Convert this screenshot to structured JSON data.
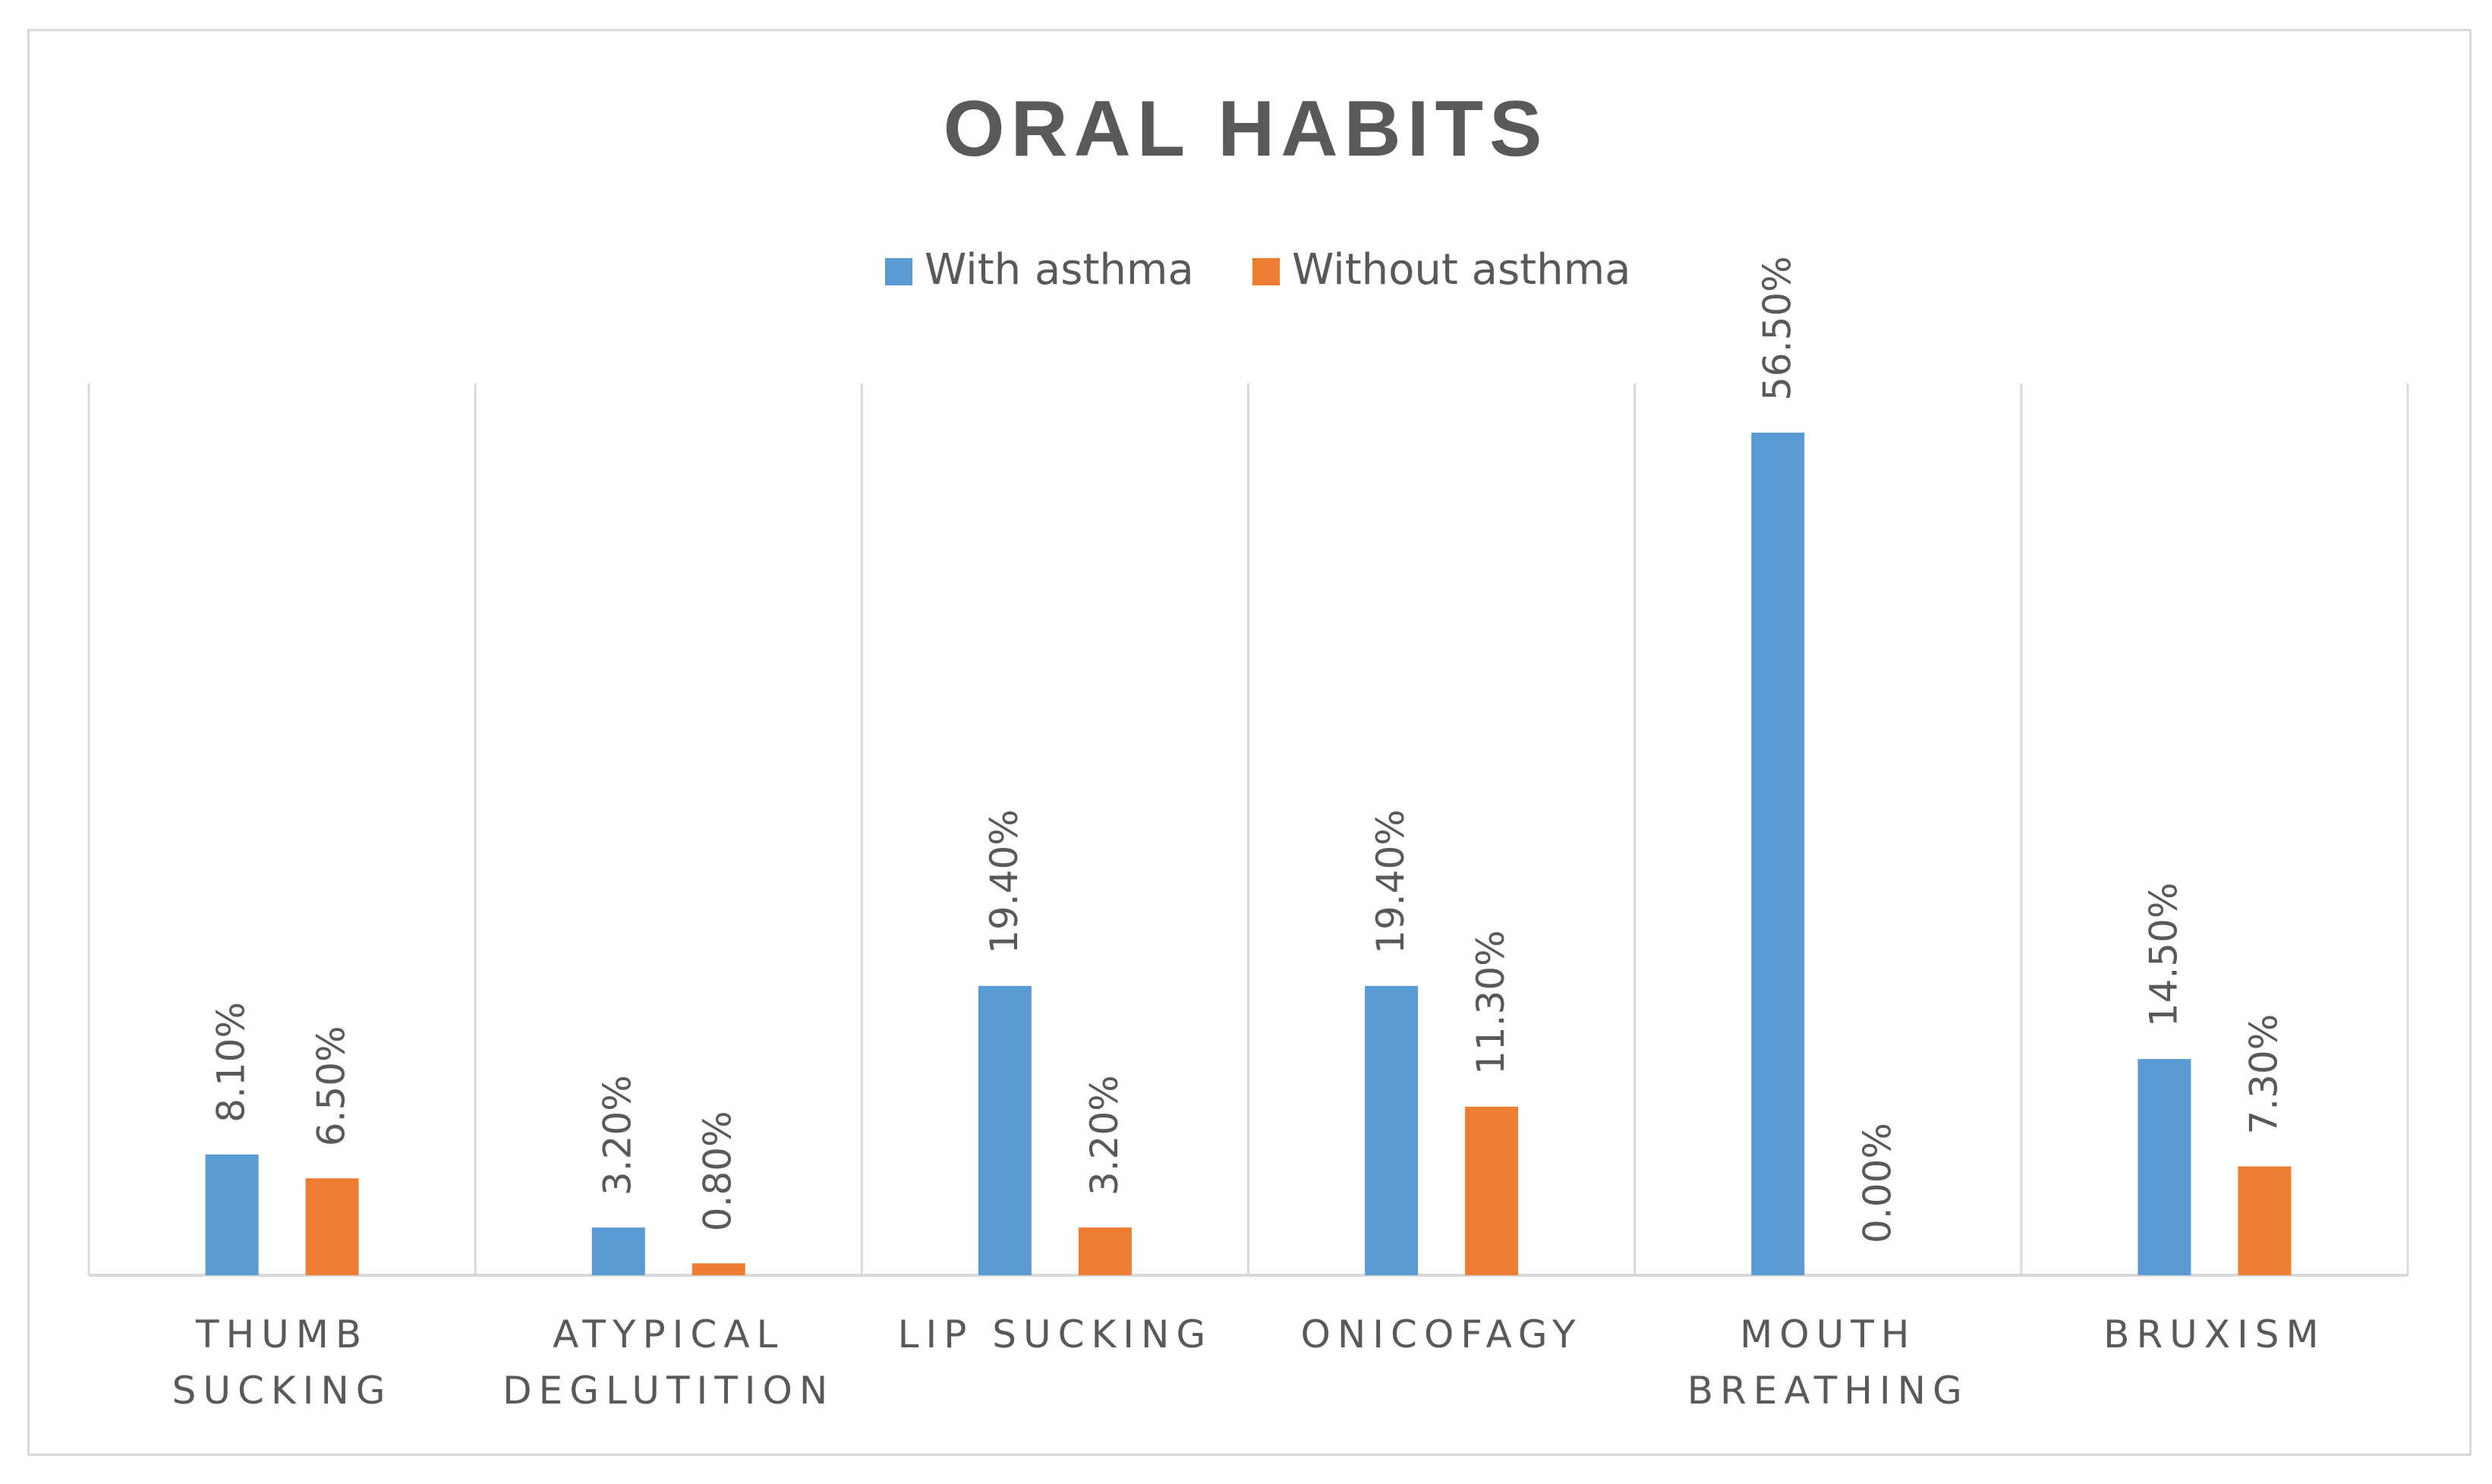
{
  "chart_data": {
    "type": "bar",
    "title": "ORAL HABITS",
    "categories": [
      [
        "THUMB",
        "SUCKING"
      ],
      [
        "ATYPICAL",
        "DEGLUTITION"
      ],
      [
        "LIP SUCKING"
      ],
      [
        "ONICOFAGY"
      ],
      [
        "MOUTH",
        "BREATHING"
      ],
      [
        "BRUXISM"
      ]
    ],
    "series": [
      {
        "name": "With asthma",
        "color": "#5b9bd5",
        "values": [
          8.1,
          3.2,
          19.4,
          19.4,
          56.5,
          14.5
        ],
        "labels": [
          "8.10%",
          "3.20%",
          "19.40%",
          "19.40%",
          "56.50%",
          "14.50%"
        ]
      },
      {
        "name": "Without asthma",
        "color": "#ed7d31",
        "values": [
          6.5,
          0.8,
          3.2,
          11.3,
          0.0,
          7.3
        ],
        "labels": [
          "6.50%",
          "0.80%",
          "3.20%",
          "11.30%",
          "0.00%",
          "7.30%"
        ]
      }
    ],
    "xlabel": "",
    "ylabel": "",
    "ylim": [
      0,
      60
    ],
    "legend_position": "top-center",
    "vertical_category_separators": true,
    "data_labels": "rotated-vertical"
  }
}
